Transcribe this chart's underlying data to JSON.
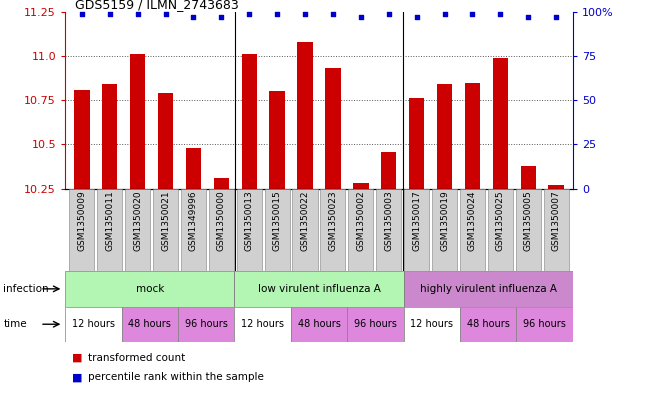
{
  "title": "GDS5159 / ILMN_2743683",
  "samples": [
    "GSM1350009",
    "GSM1350011",
    "GSM1350020",
    "GSM1350021",
    "GSM1349996",
    "GSM1350000",
    "GSM1350013",
    "GSM1350015",
    "GSM1350022",
    "GSM1350023",
    "GSM1350002",
    "GSM1350003",
    "GSM1350017",
    "GSM1350019",
    "GSM1350024",
    "GSM1350025",
    "GSM1350005",
    "GSM1350007"
  ],
  "transformed_counts": [
    10.81,
    10.84,
    11.01,
    10.79,
    10.48,
    10.31,
    11.01,
    10.8,
    11.08,
    10.93,
    10.28,
    10.46,
    10.76,
    10.84,
    10.85,
    10.99,
    10.38,
    10.27
  ],
  "percentile_ranks": [
    99,
    99,
    99,
    99,
    97,
    97,
    99,
    99,
    99,
    99,
    97,
    99,
    97,
    99,
    99,
    99,
    97,
    97
  ],
  "ylim_left": [
    10.25,
    11.25
  ],
  "ylim_right": [
    0,
    100
  ],
  "yticks_left": [
    10.25,
    10.5,
    10.75,
    11.0,
    11.25
  ],
  "yticks_right": [
    0,
    25,
    50,
    75,
    100
  ],
  "bar_color": "#cc0000",
  "dot_color": "#0000cc",
  "inf_groups": [
    {
      "label": "mock",
      "start": 0,
      "end": 6,
      "color": "#b3f5b3"
    },
    {
      "label": "low virulent influenza A",
      "start": 6,
      "end": 12,
      "color": "#b3f5b3"
    },
    {
      "label": "highly virulent influenza A",
      "start": 12,
      "end": 18,
      "color": "#cc88cc"
    }
  ],
  "time_groups": [
    {
      "label": "12 hours",
      "start": 0,
      "end": 2,
      "color": "#ffffff"
    },
    {
      "label": "48 hours",
      "start": 2,
      "end": 4,
      "color": "#dd88dd"
    },
    {
      "label": "96 hours",
      "start": 4,
      "end": 6,
      "color": "#dd88dd"
    },
    {
      "label": "12 hours",
      "start": 6,
      "end": 8,
      "color": "#ffffff"
    },
    {
      "label": "48 hours",
      "start": 8,
      "end": 10,
      "color": "#dd88dd"
    },
    {
      "label": "96 hours",
      "start": 10,
      "end": 12,
      "color": "#dd88dd"
    },
    {
      "label": "12 hours",
      "start": 12,
      "end": 14,
      "color": "#ffffff"
    },
    {
      "label": "48 hours",
      "start": 14,
      "end": 16,
      "color": "#dd88dd"
    },
    {
      "label": "96 hours",
      "start": 16,
      "end": 18,
      "color": "#dd88dd"
    }
  ],
  "legend_items": [
    {
      "label": "transformed count",
      "color": "#cc0000"
    },
    {
      "label": "percentile rank within the sample",
      "color": "#0000cc"
    }
  ],
  "bg_color": "#ffffff",
  "sample_bg_color": "#d0d0d0",
  "grid_color": "#555555",
  "sep_line_color": "#888888"
}
